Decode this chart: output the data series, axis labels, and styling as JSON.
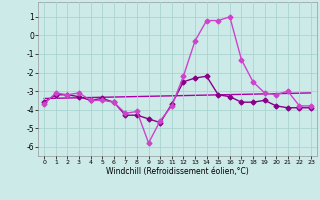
{
  "xlabel": "Windchill (Refroidissement éolien,°C)",
  "background_color": "#cceae8",
  "grid_color": "#aad4d0",
  "line_color1": "#880088",
  "line_color2": "#cc44cc",
  "line_color3": "#aa00aa",
  "ylim": [
    -6.5,
    1.8
  ],
  "xlim": [
    -0.5,
    23.5
  ],
  "yticks": [
    1,
    0,
    -1,
    -2,
    -3,
    -4,
    -5,
    -6
  ],
  "xticks": [
    0,
    1,
    2,
    3,
    4,
    5,
    6,
    7,
    8,
    9,
    10,
    11,
    12,
    13,
    14,
    15,
    16,
    17,
    18,
    19,
    20,
    21,
    22,
    23
  ],
  "series1_x": [
    0,
    1,
    2,
    3,
    4,
    5,
    6,
    7,
    8,
    9,
    10,
    11,
    12,
    13,
    14,
    15,
    16,
    17,
    18,
    19,
    20,
    21,
    22,
    23
  ],
  "series1_y": [
    -3.6,
    -3.2,
    -3.2,
    -3.3,
    -3.5,
    -3.4,
    -3.6,
    -4.3,
    -4.3,
    -4.5,
    -4.7,
    -3.7,
    -2.5,
    -2.3,
    -2.2,
    -3.2,
    -3.3,
    -3.6,
    -3.6,
    -3.5,
    -3.8,
    -3.9,
    -3.9,
    -3.9
  ],
  "series2_x": [
    0,
    1,
    2,
    3,
    4,
    5,
    6,
    7,
    8,
    9,
    10,
    11,
    12,
    13,
    14,
    15,
    16,
    17,
    18,
    19,
    20,
    21,
    22,
    23
  ],
  "series2_y": [
    -3.7,
    -3.1,
    -3.2,
    -3.1,
    -3.5,
    -3.5,
    -3.6,
    -4.2,
    -4.1,
    -5.8,
    -4.6,
    -3.8,
    -2.2,
    -0.3,
    0.8,
    0.8,
    1.0,
    -1.3,
    -2.5,
    -3.1,
    -3.2,
    -3.0,
    -3.8,
    -3.8
  ],
  "series3_x": [
    0,
    23
  ],
  "series3_y": [
    -3.4,
    -3.1
  ],
  "marker": "D",
  "markersize": 2.5,
  "linewidth": 1.0
}
